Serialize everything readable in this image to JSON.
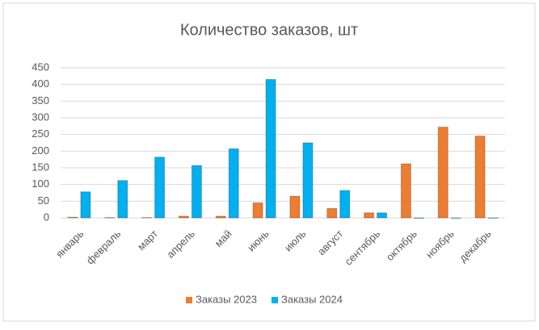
{
  "chart_data": {
    "type": "bar",
    "title": "Количество заказов, шт",
    "categories": [
      "январь",
      "февраль",
      "март",
      "апрель",
      "май",
      "июнь",
      "июль",
      "август",
      "сентябрь",
      "октябрь",
      "ноябрь",
      "декабрь"
    ],
    "series": [
      {
        "name": "Заказы 2023",
        "color": "#ed7d31",
        "values": [
          2,
          1,
          1,
          5,
          5,
          45,
          65,
          28,
          15,
          162,
          272,
          245
        ]
      },
      {
        "name": "Заказы 2024",
        "color": "#00b0f0",
        "values": [
          78,
          112,
          182,
          157,
          207,
          415,
          225,
          82,
          15,
          0,
          0,
          0
        ]
      }
    ],
    "ylim": [
      0,
      450
    ],
    "yticks": [
      0,
      50,
      100,
      150,
      200,
      250,
      300,
      350,
      400,
      450
    ],
    "grid": true,
    "legend": "bottom"
  }
}
